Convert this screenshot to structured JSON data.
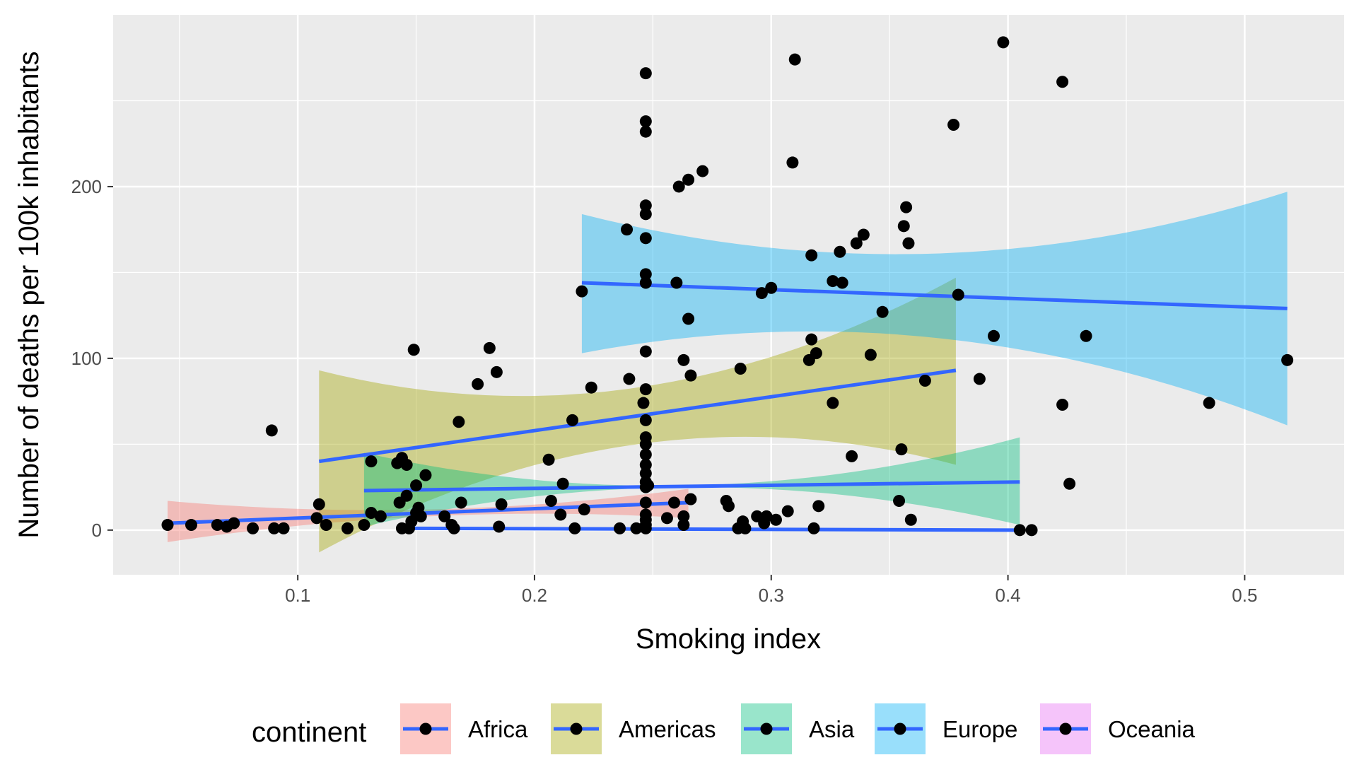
{
  "chart_data": {
    "type": "scatter",
    "xlabel": "Smoking index",
    "ylabel": "Number of deaths per 100k inhabitants",
    "xlim": [
      0.022,
      0.542
    ],
    "ylim": [
      -26,
      300
    ],
    "x_ticks": [
      0.1,
      0.2,
      0.3,
      0.4,
      0.5
    ],
    "x_tick_labels": [
      "0.1",
      "0.2",
      "0.3",
      "0.4",
      "0.5"
    ],
    "y_ticks": [
      0,
      100,
      200
    ],
    "y_tick_labels": [
      "0",
      "100",
      "200"
    ],
    "grid": true,
    "legend": {
      "title": "continent",
      "position": "bottom",
      "entries": [
        {
          "label": "Africa",
          "color": "#F8766D"
        },
        {
          "label": "Americas",
          "color": "#A3A500"
        },
        {
          "label": "Asia",
          "color": "#00BF7D"
        },
        {
          "label": "Europe",
          "color": "#00B0F6"
        },
        {
          "label": "Oceania",
          "color": "#E76BF3"
        }
      ]
    },
    "fit_line_color": "#3366FF",
    "point_color": "#000000",
    "band_opacity": 0.4,
    "fits": [
      {
        "name": "Africa",
        "color": "#F8766D",
        "x0": 0.045,
        "x1": 0.265,
        "fit": [
          4,
          16
        ],
        "lower": [
          -7,
          7
        ],
        "upper": [
          17,
          24
        ],
        "bandmid": [
          8,
          13
        ]
      },
      {
        "name": "Americas",
        "color": "#A3A500",
        "x0": 0.109,
        "x1": 0.378,
        "fit": [
          40,
          93
        ],
        "lower": [
          -13,
          38
        ],
        "upper": [
          93,
          147
        ],
        "bandmid": [
          50,
          49
        ]
      },
      {
        "name": "Asia",
        "color": "#00BF7D",
        "x0": 0.128,
        "x1": 0.405,
        "fit": [
          23,
          28
        ],
        "lower": [
          2,
          3
        ],
        "upper": [
          45,
          54
        ],
        "bandmid": [
          25,
          26
        ]
      },
      {
        "name": "Europe",
        "color": "#00B0F6",
        "x0": 0.22,
        "x1": 0.518,
        "fit": [
          144,
          129
        ],
        "lower": [
          103,
          61
        ],
        "upper": [
          184,
          197
        ],
        "bandmid": [
          161,
          151
        ]
      },
      {
        "name": "Europe-low",
        "color": "#00B0F6",
        "x0": 0.148,
        "x1": 0.405,
        "fit": [
          1,
          0
        ],
        "lower": [
          0,
          0
        ],
        "upper": [
          0,
          0
        ],
        "bandmid": [
          0,
          0
        ],
        "noband": true
      }
    ],
    "points": [
      [
        0.045,
        3
      ],
      [
        0.055,
        3
      ],
      [
        0.066,
        3
      ],
      [
        0.07,
        2
      ],
      [
        0.073,
        4
      ],
      [
        0.081,
        1
      ],
      [
        0.089,
        58
      ],
      [
        0.09,
        1
      ],
      [
        0.094,
        1
      ],
      [
        0.108,
        7
      ],
      [
        0.109,
        15
      ],
      [
        0.112,
        3
      ],
      [
        0.121,
        1
      ],
      [
        0.128,
        3
      ],
      [
        0.131,
        40
      ],
      [
        0.131,
        10
      ],
      [
        0.135,
        8
      ],
      [
        0.142,
        39
      ],
      [
        0.144,
        42
      ],
      [
        0.143,
        16
      ],
      [
        0.146,
        38
      ],
      [
        0.146,
        20
      ],
      [
        0.144,
        1
      ],
      [
        0.147,
        1
      ],
      [
        0.148,
        5
      ],
      [
        0.149,
        105
      ],
      [
        0.15,
        26
      ],
      [
        0.151,
        13
      ],
      [
        0.152,
        8
      ],
      [
        0.15,
        10
      ],
      [
        0.154,
        32
      ],
      [
        0.162,
        8
      ],
      [
        0.165,
        3
      ],
      [
        0.166,
        1
      ],
      [
        0.168,
        63
      ],
      [
        0.169,
        16
      ],
      [
        0.176,
        85
      ],
      [
        0.181,
        106
      ],
      [
        0.184,
        92
      ],
      [
        0.185,
        2
      ],
      [
        0.186,
        15
      ],
      [
        0.206,
        41
      ],
      [
        0.207,
        17
      ],
      [
        0.211,
        9
      ],
      [
        0.212,
        27
      ],
      [
        0.216,
        64
      ],
      [
        0.217,
        1
      ],
      [
        0.22,
        139
      ],
      [
        0.221,
        12
      ],
      [
        0.224,
        83
      ],
      [
        0.236,
        1
      ],
      [
        0.239,
        175
      ],
      [
        0.24,
        88
      ],
      [
        0.243,
        1
      ],
      [
        0.246,
        74
      ],
      [
        0.247,
        266
      ],
      [
        0.247,
        238
      ],
      [
        0.247,
        232
      ],
      [
        0.247,
        189
      ],
      [
        0.247,
        184
      ],
      [
        0.247,
        170
      ],
      [
        0.247,
        149
      ],
      [
        0.247,
        144
      ],
      [
        0.247,
        104
      ],
      [
        0.247,
        82
      ],
      [
        0.247,
        64
      ],
      [
        0.247,
        54
      ],
      [
        0.247,
        50
      ],
      [
        0.247,
        44
      ],
      [
        0.247,
        38
      ],
      [
        0.247,
        33
      ],
      [
        0.247,
        28
      ],
      [
        0.247,
        25
      ],
      [
        0.247,
        16
      ],
      [
        0.247,
        9
      ],
      [
        0.247,
        6
      ],
      [
        0.247,
        3
      ],
      [
        0.247,
        1
      ],
      [
        0.248,
        26
      ],
      [
        0.256,
        7
      ],
      [
        0.259,
        16
      ],
      [
        0.26,
        144
      ],
      [
        0.261,
        200
      ],
      [
        0.263,
        99
      ],
      [
        0.263,
        8
      ],
      [
        0.263,
        3
      ],
      [
        0.265,
        204
      ],
      [
        0.265,
        123
      ],
      [
        0.266,
        90
      ],
      [
        0.266,
        18
      ],
      [
        0.271,
        209
      ],
      [
        0.281,
        17
      ],
      [
        0.282,
        14
      ],
      [
        0.286,
        1
      ],
      [
        0.287,
        94
      ],
      [
        0.288,
        5
      ],
      [
        0.289,
        1
      ],
      [
        0.294,
        8
      ],
      [
        0.296,
        138
      ],
      [
        0.297,
        4
      ],
      [
        0.298,
        8
      ],
      [
        0.3,
        141
      ],
      [
        0.302,
        6
      ],
      [
        0.307,
        11
      ],
      [
        0.309,
        214
      ],
      [
        0.31,
        274
      ],
      [
        0.316,
        99
      ],
      [
        0.317,
        160
      ],
      [
        0.317,
        111
      ],
      [
        0.318,
        1
      ],
      [
        0.319,
        103
      ],
      [
        0.32,
        14
      ],
      [
        0.326,
        145
      ],
      [
        0.326,
        74
      ],
      [
        0.329,
        162
      ],
      [
        0.33,
        144
      ],
      [
        0.334,
        43
      ],
      [
        0.336,
        167
      ],
      [
        0.339,
        172
      ],
      [
        0.342,
        102
      ],
      [
        0.347,
        127
      ],
      [
        0.354,
        17
      ],
      [
        0.355,
        47
      ],
      [
        0.356,
        177
      ],
      [
        0.357,
        188
      ],
      [
        0.358,
        167
      ],
      [
        0.359,
        6
      ],
      [
        0.365,
        87
      ],
      [
        0.377,
        236
      ],
      [
        0.379,
        137
      ],
      [
        0.388,
        88
      ],
      [
        0.394,
        113
      ],
      [
        0.398,
        284
      ],
      [
        0.405,
        0
      ],
      [
        0.41,
        0
      ],
      [
        0.423,
        261
      ],
      [
        0.423,
        73
      ],
      [
        0.426,
        27
      ],
      [
        0.433,
        113
      ],
      [
        0.485,
        74
      ],
      [
        0.518,
        99
      ]
    ]
  }
}
